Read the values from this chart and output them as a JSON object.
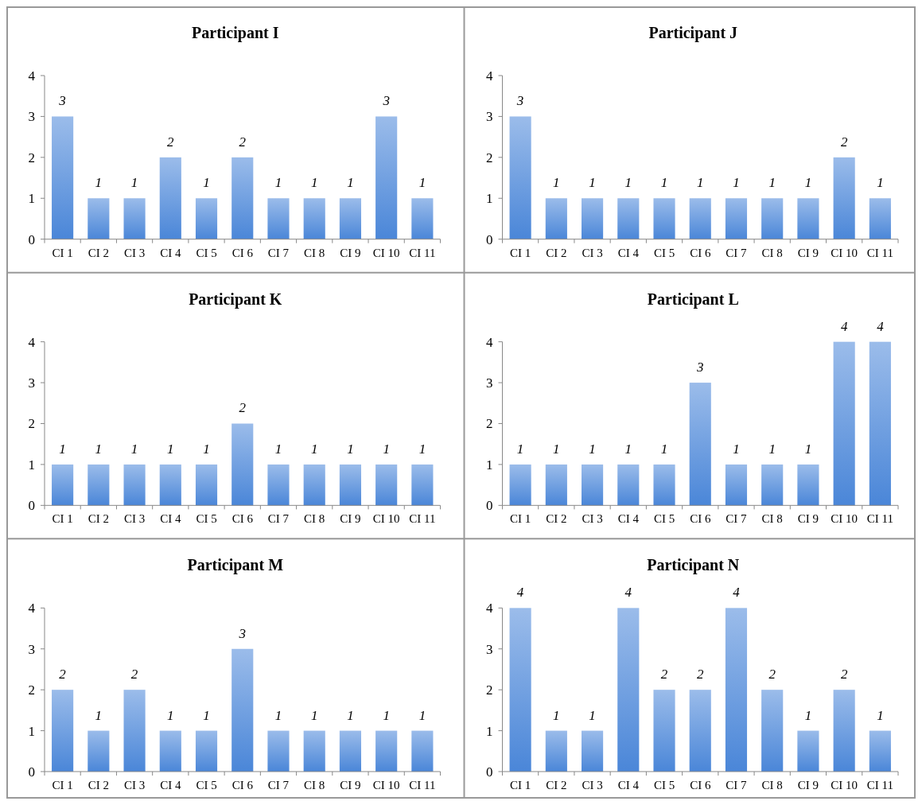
{
  "chart_data": [
    {
      "type": "bar",
      "title": "Participant I",
      "categories": [
        "CI 1",
        "CI 2",
        "CI 3",
        "CI 4",
        "CI 5",
        "CI 6",
        "CI 7",
        "CI 8",
        "CI 9",
        "CI 10",
        "CI 11"
      ],
      "values": [
        3,
        1,
        1,
        2,
        1,
        2,
        1,
        1,
        1,
        3,
        1
      ],
      "color": "#4a86d8",
      "ylim": [
        0,
        4
      ],
      "yticks": [
        0,
        1,
        2,
        3,
        4
      ],
      "data_labels": true
    },
    {
      "type": "bar",
      "title": "Participant J",
      "categories": [
        "CI 1",
        "CI 2",
        "CI 3",
        "CI 4",
        "CI 5",
        "CI 6",
        "CI 7",
        "CI 8",
        "CI 9",
        "CI 10",
        "CI 11"
      ],
      "values": [
        3,
        1,
        1,
        1,
        1,
        1,
        1,
        1,
        1,
        2,
        1
      ],
      "color": "#4a86d8",
      "ylim": [
        0,
        4
      ],
      "yticks": [
        0,
        1,
        2,
        3,
        4
      ],
      "data_labels": true
    },
    {
      "type": "bar",
      "title": "Participant K",
      "categories": [
        "CI 1",
        "CI 2",
        "CI 3",
        "CI 4",
        "CI 5",
        "CI 6",
        "CI 7",
        "CI 8",
        "CI 9",
        "CI 10",
        "CI 11"
      ],
      "values": [
        1,
        1,
        1,
        1,
        1,
        2,
        1,
        1,
        1,
        1,
        1
      ],
      "color": "#4a86d8",
      "ylim": [
        0,
        4
      ],
      "yticks": [
        0,
        1,
        2,
        3,
        4
      ],
      "data_labels": true
    },
    {
      "type": "bar",
      "title": "Participant L",
      "categories": [
        "CI 1",
        "CI 2",
        "CI 3",
        "CI 4",
        "CI 5",
        "CI 6",
        "CI 7",
        "CI 8",
        "CI 9",
        "CI 10",
        "CI 11"
      ],
      "values": [
        1,
        1,
        1,
        1,
        1,
        3,
        1,
        1,
        1,
        4,
        4
      ],
      "color": "#4a86d8",
      "ylim": [
        0,
        4
      ],
      "yticks": [
        0,
        1,
        2,
        3,
        4
      ],
      "data_labels": true
    },
    {
      "type": "bar",
      "title": "Participant M",
      "categories": [
        "CI 1",
        "CI 2",
        "CI 3",
        "CI 4",
        "CI 5",
        "CI 6",
        "CI 7",
        "CI 8",
        "CI 9",
        "CI 10",
        "CI 11"
      ],
      "values": [
        2,
        1,
        2,
        1,
        1,
        3,
        1,
        1,
        1,
        1,
        1
      ],
      "color": "#4a86d8",
      "ylim": [
        0,
        4
      ],
      "yticks": [
        0,
        1,
        2,
        3,
        4
      ],
      "data_labels": true
    },
    {
      "type": "bar",
      "title": "Participant N",
      "categories": [
        "CI 1",
        "CI 2",
        "CI 3",
        "CI 4",
        "CI 5",
        "CI 6",
        "CI 7",
        "CI 8",
        "CI 9",
        "CI 10",
        "CI 11"
      ],
      "values": [
        4,
        1,
        1,
        4,
        2,
        2,
        4,
        2,
        1,
        2,
        1
      ],
      "color": "#4a86d8",
      "ylim": [
        0,
        4
      ],
      "yticks": [
        0,
        1,
        2,
        3,
        4
      ],
      "data_labels": true
    }
  ]
}
